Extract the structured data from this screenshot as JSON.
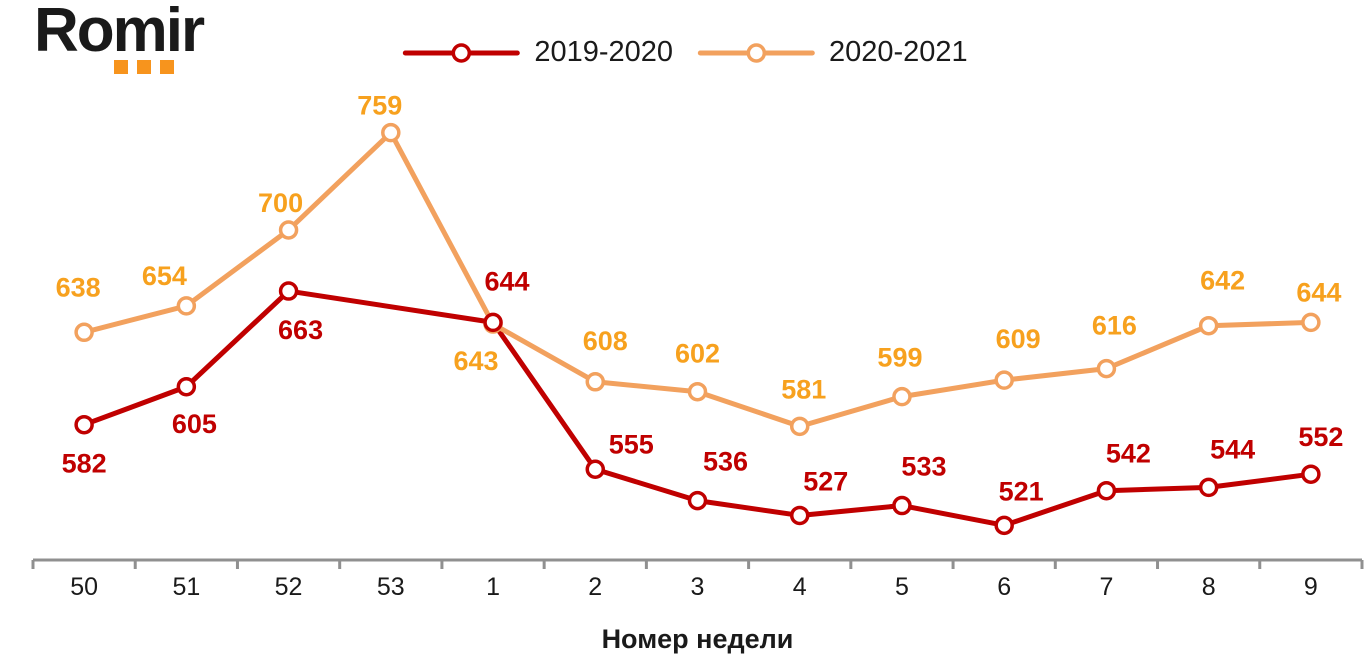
{
  "logo": {
    "text": "Romir",
    "dot_color": "#F7941D",
    "text_color": "#1a1a1a"
  },
  "colors": {
    "background": "#ffffff",
    "axis_line": "#909090",
    "tick_label": "#1a1a1a",
    "legend_text": "#1a1a1a",
    "series_red": "#C00000",
    "series_red_label": "#C00000",
    "series_orange": "#F2A15E",
    "series_orange_label": "#F7A11E"
  },
  "chart_data": {
    "type": "line",
    "title": "",
    "xlabel": "Номер недели",
    "ylabel": "",
    "categories": [
      "50",
      "51",
      "52",
      "53",
      "1",
      "2",
      "3",
      "4",
      "5",
      "6",
      "7",
      "8",
      "9"
    ],
    "series": [
      {
        "name": "2019-2020",
        "color": "#C00000",
        "label_color": "#C00000",
        "values": [
          582,
          605,
          663,
          null,
          644,
          555,
          536,
          527,
          533,
          521,
          542,
          544,
          552
        ],
        "label_offsets": [
          [
            0,
            48
          ],
          [
            8,
            46
          ],
          [
            12,
            48
          ],
          null,
          [
            14,
            -32
          ],
          [
            36,
            -16
          ],
          [
            28,
            -30
          ],
          [
            26,
            -25
          ],
          [
            22,
            -30
          ],
          [
            17,
            -25
          ],
          [
            22,
            -28
          ],
          [
            24,
            -29
          ],
          [
            10,
            -28
          ]
        ]
      },
      {
        "name": "2020-2021",
        "color": "#F2A15E",
        "label_color": "#F7A11E",
        "values": [
          638,
          654,
          700,
          759,
          643,
          608,
          602,
          581,
          599,
          609,
          616,
          642,
          644
        ],
        "label_offsets": [
          [
            -6,
            -36
          ],
          [
            -22,
            -21
          ],
          [
            -8,
            -18
          ],
          [
            -11,
            -18
          ],
          [
            -17,
            46
          ],
          [
            10,
            -32
          ],
          [
            0,
            -29
          ],
          [
            4,
            -28
          ],
          [
            -2,
            -30
          ],
          [
            14,
            -32
          ],
          [
            8,
            -34
          ],
          [
            14,
            -36
          ],
          [
            8,
            -21
          ]
        ]
      }
    ],
    "ylim": [
      500,
      790
    ],
    "y_axis_visible": false,
    "grid": false,
    "legend_position": "top-center",
    "data_labels": true,
    "marker": "open-circle"
  }
}
